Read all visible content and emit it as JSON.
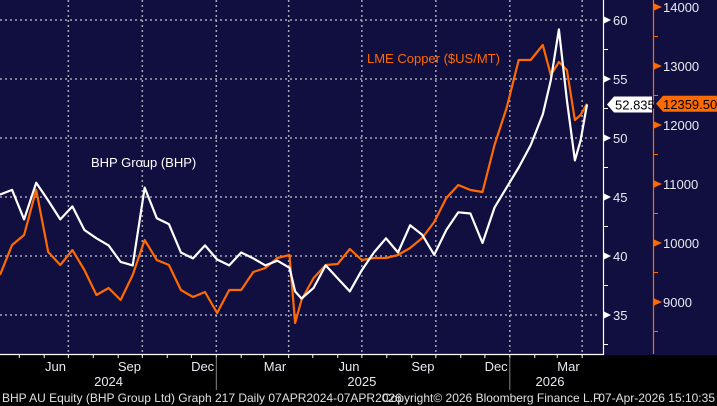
{
  "chart_data": {
    "type": "line",
    "title": "",
    "x_range": [
      "2024-04-07",
      "2026-04-07"
    ],
    "x_ticks": [
      {
        "label": "Jun",
        "date": "2024-06-15"
      },
      {
        "label": "Sep",
        "date": "2024-09-15"
      },
      {
        "label": "Dec",
        "date": "2024-12-15"
      },
      {
        "label": "Mar",
        "date": "2025-03-15"
      },
      {
        "label": "Jun",
        "date": "2025-06-15"
      },
      {
        "label": "Sep",
        "date": "2025-09-15"
      },
      {
        "label": "Dec",
        "date": "2025-12-15"
      },
      {
        "label": "Mar",
        "date": "2026-03-15"
      }
    ],
    "year_labels": [
      {
        "label": "2024",
        "date": "2024-08-20"
      },
      {
        "label": "2025",
        "date": "2025-07-01"
      },
      {
        "label": "2026",
        "date": "2026-02-20"
      }
    ],
    "grid": true,
    "x": [
      "2024-04-07",
      "2024-04-22",
      "2024-05-07",
      "2024-05-22",
      "2024-06-06",
      "2024-06-21",
      "2024-07-06",
      "2024-07-21",
      "2024-08-05",
      "2024-08-20",
      "2024-09-04",
      "2024-09-19",
      "2024-10-04",
      "2024-10-19",
      "2024-11-03",
      "2024-11-18",
      "2024-12-03",
      "2024-12-18",
      "2025-01-02",
      "2025-01-17",
      "2025-02-01",
      "2025-02-16",
      "2025-03-03",
      "2025-03-18",
      "2025-04-02",
      "2025-04-09",
      "2025-04-17",
      "2025-05-02",
      "2025-05-17",
      "2025-06-01",
      "2025-06-16",
      "2025-07-01",
      "2025-07-16",
      "2025-07-31",
      "2025-08-15",
      "2025-08-30",
      "2025-09-14",
      "2025-09-29",
      "2025-10-14",
      "2025-10-29",
      "2025-11-13",
      "2025-11-28",
      "2025-12-13",
      "2025-12-28",
      "2026-01-12",
      "2026-01-27",
      "2026-02-11",
      "2026-02-21",
      "2026-03-03",
      "2026-03-13",
      "2026-03-23",
      "2026-03-30",
      "2026-04-07"
    ],
    "series": [
      {
        "name": "BHP Group (BHP)",
        "axis": "left",
        "color": "#ffffff",
        "last_value_label": "52.835",
        "values": [
          45.2,
          45.6,
          43.1,
          46.2,
          44.7,
          43.1,
          44.2,
          42.2,
          41.5,
          40.9,
          39.5,
          39.2,
          45.8,
          43.2,
          42.7,
          40.3,
          39.8,
          40.9,
          39.7,
          39.2,
          40.3,
          39.8,
          39.2,
          39.6,
          39.0,
          37.0,
          36.4,
          37.3,
          39.2,
          38.1,
          37.0,
          38.8,
          40.3,
          41.5,
          40.3,
          42.6,
          41.8,
          40.1,
          42.2,
          43.7,
          43.6,
          41.1,
          44.1,
          45.8,
          47.5,
          49.4,
          52.0,
          54.9,
          59.2,
          53.2,
          48.1,
          49.8,
          52.835
        ]
      },
      {
        "name": "LME Copper ($US/MT)",
        "axis": "right",
        "color": "#ff6a00",
        "last_value_label": "12359.50",
        "values": [
          9457,
          9966,
          10135,
          10900,
          9847,
          9627,
          9881,
          9542,
          9118,
          9237,
          9034,
          9457,
          10051,
          9712,
          9627,
          9203,
          9085,
          9169,
          8813,
          9203,
          9203,
          9508,
          9576,
          9746,
          9796,
          8644,
          9034,
          9407,
          9627,
          9644,
          9898,
          9712,
          9746,
          9746,
          9796,
          9915,
          10085,
          10356,
          10763,
          10983,
          10898,
          10864,
          11661,
          12288,
          13102,
          13102,
          13356,
          12847,
          13068,
          12932,
          12085,
          12170,
          12359.5
        ]
      }
    ],
    "y_left": {
      "range": [
        32.3,
        61.7
      ],
      "ticks": [
        "35",
        "40",
        "45",
        "50",
        "55",
        "60"
      ]
    },
    "y_right": {
      "range": [
        7600,
        14400
      ],
      "ticks": [
        "9000",
        "10000",
        "11000",
        "12000",
        "13000",
        "14000"
      ]
    }
  },
  "footer": {
    "security": "BHP AU Equity (BHP Group Ltd) Graph 217 Daily 07APR2024-07APR2026",
    "copyright": "Copyright© 2026 Bloomberg Finance L.P.",
    "timestamp": "07-Apr-2026 15:10:35"
  },
  "colors": {
    "background": "#110f40",
    "grid": "#a0a0b0",
    "bhp": "#ffffff",
    "copper": "#ff6a00"
  }
}
